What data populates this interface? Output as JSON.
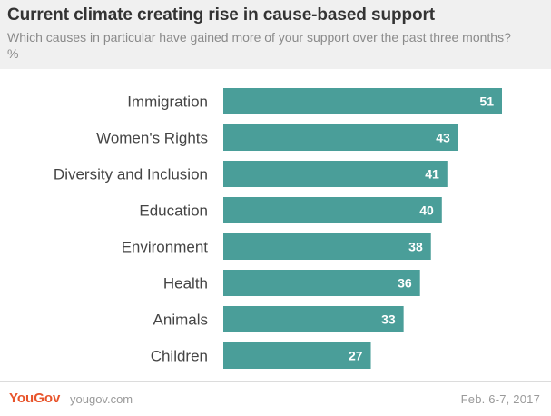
{
  "header": {
    "title": "Current climate creating rise in cause-based support",
    "subtitle": "Which causes in particular have gained more of your support over the past three months? %"
  },
  "footer": {
    "brand": "YouGov",
    "site": "yougov.com",
    "date": "Feb. 6-7, 2017"
  },
  "colors": {
    "bar": "#4a9e99",
    "value_label": "#ffffff",
    "category_label": "#444444",
    "brand": "#e8542b"
  },
  "chart_data": {
    "type": "bar",
    "orientation": "horizontal",
    "categories": [
      "Immigration",
      "Women's Rights",
      "Diversity and Inclusion",
      "Education",
      "Environment",
      "Health",
      "Animals",
      "Children"
    ],
    "values": [
      51,
      43,
      41,
      40,
      38,
      36,
      33,
      27
    ],
    "title": "Current climate creating rise in cause-based support",
    "subtitle": "Which causes in particular have gained more of your support over the past three months? %",
    "xlim": [
      0,
      51
    ],
    "grid": false,
    "legend": "none",
    "data_labels": true
  }
}
